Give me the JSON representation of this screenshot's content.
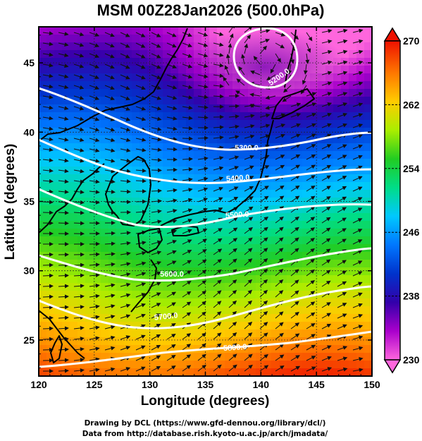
{
  "title": "MSM 00Z28Jan2026 (500.0hPa)",
  "x_axis": {
    "label": "Longitude (degrees)",
    "range": [
      120,
      150
    ],
    "ticks": [
      "120",
      "125",
      "130",
      "135",
      "140",
      "145",
      "150"
    ]
  },
  "y_axis": {
    "label": "Latitude  (degrees)",
    "range": [
      22.4,
      47.6
    ],
    "ticks": [
      "25",
      "30",
      "35",
      "40",
      "45"
    ]
  },
  "colorbar": {
    "range": [
      230,
      270
    ],
    "ticks": [
      "230",
      "238",
      "246",
      "254",
      "262",
      "270"
    ],
    "palette": [
      "#ff66dd",
      "#aa00cc",
      "#3300aa",
      "#0033cc",
      "#0077ff",
      "#00c8ff",
      "#00dd88",
      "#22cc22",
      "#aaee00",
      "#ffcc00",
      "#ff7700",
      "#ee1100"
    ]
  },
  "contours": [
    {
      "label": "5200.0"
    },
    {
      "label": "5300.0"
    },
    {
      "label": "5400.0"
    },
    {
      "label": "5500.0"
    },
    {
      "label": "5600.0"
    },
    {
      "label": "5700.0"
    },
    {
      "label": "5800.0"
    }
  ],
  "credits": {
    "line1": "Drawing by DCL (https://www.gfd-dennou.org/library/dcl/)",
    "line2": "Data from http://database.rish.kyoto-u.ac.jp/arch/jmadata/"
  },
  "colors": {
    "contour": "#ffffff",
    "coast": "#000000",
    "frame": "#000000"
  }
}
